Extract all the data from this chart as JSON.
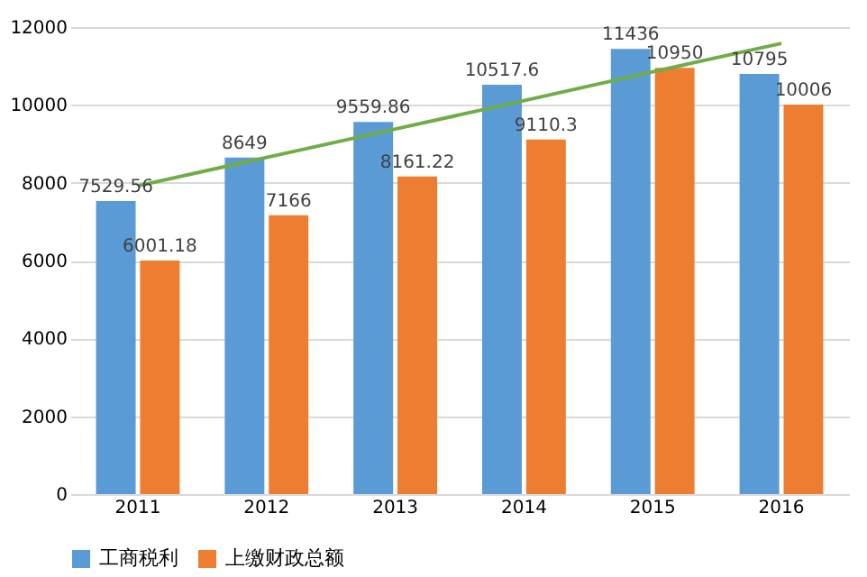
{
  "chart_data": {
    "type": "bar",
    "categories": [
      "2011",
      "2012",
      "2013",
      "2014",
      "2015",
      "2016"
    ],
    "series": [
      {
        "name": "工商税利",
        "color": "#5b9bd5",
        "values": [
          7529.56,
          8649,
          9559.86,
          10517.6,
          11436,
          10795
        ],
        "value_labels": [
          "7529.56",
          "8649",
          "9559.86",
          "10517.6",
          "11436",
          "10795"
        ]
      },
      {
        "name": "上缴财政总额",
        "color": "#ed7d31",
        "values": [
          6001.18,
          7166,
          8161.22,
          9110.3,
          10950,
          10006
        ],
        "value_labels": [
          "6001.18",
          "7166",
          "8161.22",
          "9110.3",
          "10950",
          "10006"
        ]
      },
      {
        "type": "line",
        "color": "#70ad47",
        "values": [
          7920,
          8650,
          9380,
          10110,
          10850,
          11580
        ]
      }
    ],
    "ylim": [
      0,
      12000
    ],
    "yticks": [
      0,
      2000,
      4000,
      6000,
      8000,
      10000,
      12000
    ],
    "grid": "y",
    "legend": "bottom"
  }
}
